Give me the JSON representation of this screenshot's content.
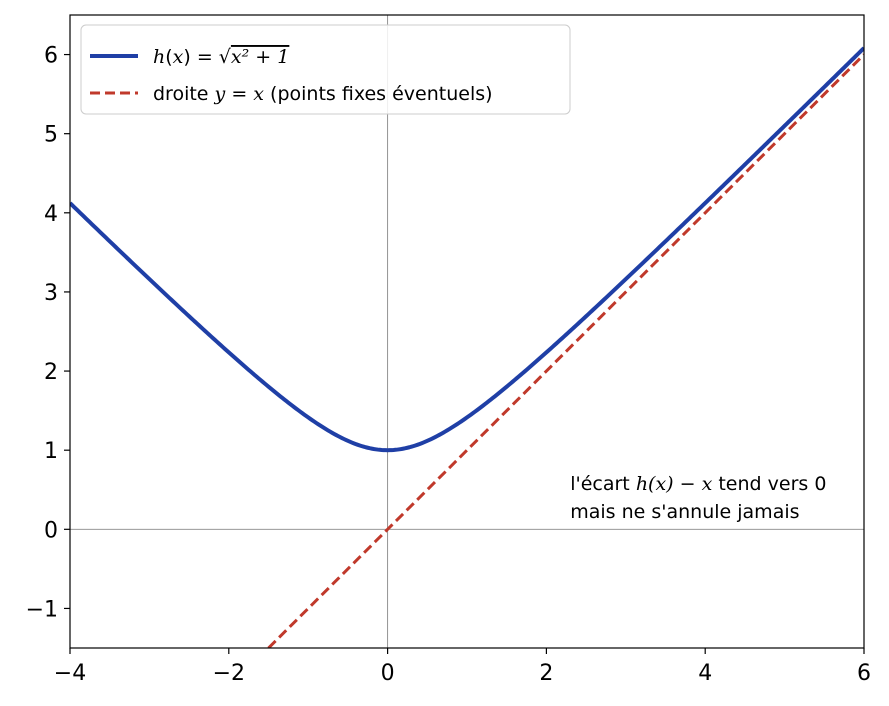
{
  "chart_data": {
    "type": "line",
    "title": "",
    "xlabel": "",
    "ylabel": "",
    "xlim": [
      -4,
      6
    ],
    "ylim": [
      -1.5,
      6.5
    ],
    "xticks": [
      -4,
      -2,
      0,
      2,
      4,
      6
    ],
    "yticks": [
      -1,
      0,
      1,
      2,
      3,
      4,
      5,
      6
    ],
    "xtick_labels": [
      "−4",
      "−2",
      "0",
      "2",
      "4",
      "6"
    ],
    "ytick_labels": [
      "−1",
      "0",
      "1",
      "2",
      "3",
      "4",
      "5",
      "6"
    ],
    "grid": false,
    "reference_lines": [
      "x = 0",
      "y = 0"
    ],
    "legend": {
      "position": "upper-left"
    },
    "series": [
      {
        "name": "h(x) = √(x² + 1)",
        "legend_parts": {
          "fn": "h",
          "arg": "x",
          "radicand": "x² + 1"
        },
        "style": "solid",
        "color": "#1f3fa6",
        "x": [
          -4,
          -3.5,
          -3,
          -2.5,
          -2,
          -1.5,
          -1,
          -0.5,
          0,
          0.5,
          1,
          1.5,
          2,
          2.5,
          3,
          3.5,
          4,
          4.5,
          5,
          5.5,
          6
        ],
        "y": [
          4.123,
          3.64,
          3.162,
          2.693,
          2.236,
          1.803,
          1.414,
          1.118,
          1.0,
          1.118,
          1.414,
          1.803,
          2.236,
          2.693,
          3.162,
          3.64,
          4.123,
          4.61,
          5.099,
          5.59,
          6.083
        ]
      },
      {
        "name": "droite y = x (points fixes éventuels)",
        "legend_parts": {
          "prefix": "droite ",
          "eq": "y = x",
          "suffix": " (points fixes éventuels)"
        },
        "style": "dashed",
        "color": "#c0392b",
        "x": [
          -1.5,
          6
        ],
        "y": [
          -1.5,
          6
        ]
      }
    ],
    "annotation": {
      "line1_prefix": "l'écart ",
      "line1_math": "h(x) − x",
      "line1_suffix": " tend vers 0",
      "line2": "mais ne s'annule jamais",
      "x": 2.3,
      "y": 0.5
    }
  }
}
